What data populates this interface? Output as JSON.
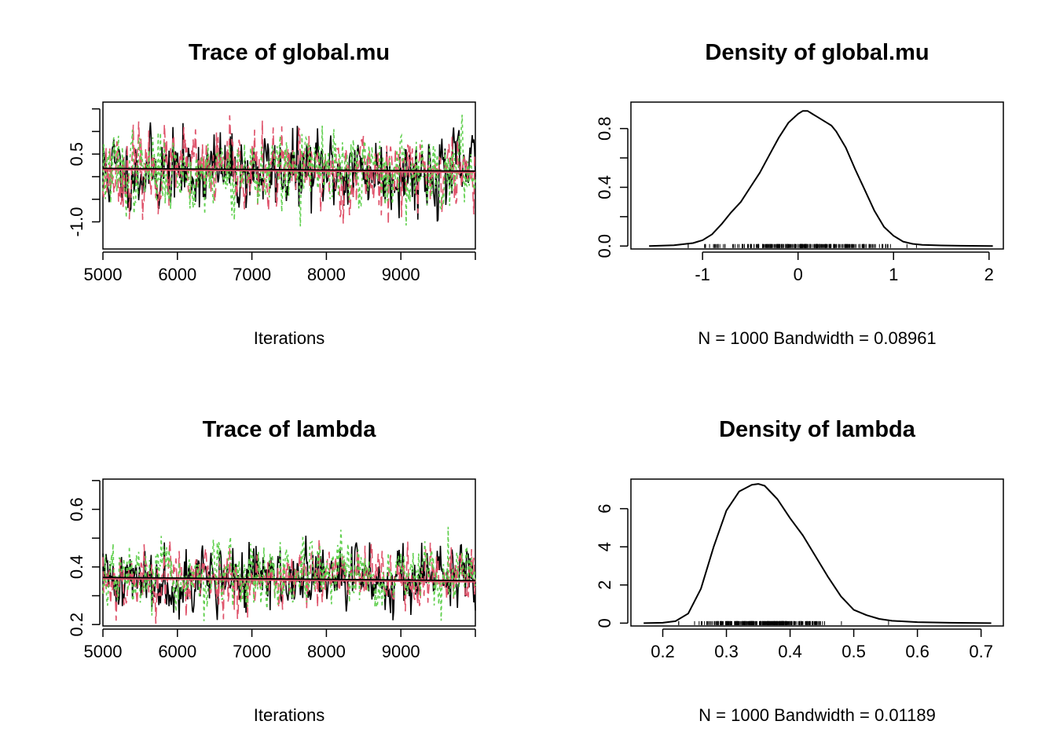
{
  "colors": {
    "chain1": "#000000",
    "chain2": "#DF536B",
    "chain3": "#61D04F",
    "mean_line": "#DF536B"
  },
  "chart_data": [
    {
      "id": "trace-global-mu",
      "type": "line",
      "title": "Trace of global.mu",
      "xlabel": "Iterations",
      "ylabel": "",
      "xlim": [
        5000,
        10000
      ],
      "ylim": [
        -1.6,
        1.65
      ],
      "x_ticks": [
        5000,
        6000,
        7000,
        8000,
        9000
      ],
      "x_tick_labels": [
        "5000",
        "6000",
        "7000",
        "8000",
        "9000"
      ],
      "y_ticks": [
        -1.0,
        -0.5,
        0.0,
        0.5,
        1.0,
        1.5
      ],
      "y_tick_labels": [
        "-1.0",
        "",
        "",
        "0.5",
        "",
        ""
      ],
      "x_tick_marks_end": 10000,
      "series": [
        {
          "chain": 1,
          "color": "#000000",
          "dash": "",
          "center": 0.12,
          "sd": 0.42,
          "seed": 11
        },
        {
          "chain": 2,
          "color": "#DF536B",
          "dash": "12,6",
          "center": 0.12,
          "sd": 0.42,
          "seed": 23
        },
        {
          "chain": 3,
          "color": "#61D04F",
          "dash": "4,4",
          "center": 0.12,
          "sd": 0.42,
          "seed": 37
        }
      ],
      "mean_line": {
        "from": [
          5000,
          0.18
        ],
        "to": [
          10000,
          0.12
        ]
      }
    },
    {
      "id": "density-global-mu",
      "type": "line",
      "title": "Density of global.mu",
      "xlabel": "N = 1000   Bandwidth = 0.08961",
      "ylabel": "",
      "xlim": [
        -1.75,
        2.15
      ],
      "ylim": [
        -0.02,
        0.98
      ],
      "x_ticks": [
        -1,
        0,
        1,
        2
      ],
      "x_tick_labels": [
        "-1",
        "0",
        "1",
        "2"
      ],
      "y_ticks": [
        0.0,
        0.2,
        0.4,
        0.6,
        0.8
      ],
      "y_tick_labels": [
        "0.0",
        "",
        "0.4",
        "",
        "0.8"
      ],
      "x": [
        -1.56,
        -1.3,
        -1.1,
        -1.0,
        -0.9,
        -0.8,
        -0.7,
        -0.6,
        -0.5,
        -0.4,
        -0.3,
        -0.2,
        -0.1,
        0.0,
        0.05,
        0.1,
        0.15,
        0.2,
        0.3,
        0.35,
        0.4,
        0.5,
        0.6,
        0.7,
        0.8,
        0.9,
        1.0,
        1.1,
        1.2,
        1.3,
        1.5,
        1.7,
        2.04
      ],
      "y": [
        0.0,
        0.005,
        0.02,
        0.04,
        0.08,
        0.15,
        0.23,
        0.3,
        0.4,
        0.5,
        0.62,
        0.74,
        0.84,
        0.9,
        0.92,
        0.92,
        0.9,
        0.88,
        0.84,
        0.82,
        0.78,
        0.67,
        0.52,
        0.38,
        0.24,
        0.13,
        0.07,
        0.03,
        0.015,
        0.008,
        0.004,
        0.002,
        0.0
      ],
      "rug": {
        "center": 0.12,
        "spread": 0.48,
        "min": -1.15,
        "max": 1.6,
        "count": 260,
        "seed": 5
      }
    },
    {
      "id": "trace-lambda",
      "type": "line",
      "title": "Trace of lambda",
      "xlabel": "Iterations",
      "ylabel": "",
      "xlim": [
        5000,
        10000
      ],
      "ylim": [
        0.195,
        0.705
      ],
      "x_ticks": [
        5000,
        6000,
        7000,
        8000,
        9000
      ],
      "x_tick_labels": [
        "5000",
        "6000",
        "7000",
        "8000",
        "9000"
      ],
      "y_ticks": [
        0.2,
        0.3,
        0.4,
        0.5,
        0.6,
        0.7
      ],
      "y_tick_labels": [
        "0.2",
        "",
        "0.4",
        "",
        "0.6",
        ""
      ],
      "x_tick_marks_end": 10000,
      "series": [
        {
          "chain": 1,
          "color": "#000000",
          "dash": "",
          "center": 0.36,
          "sd": 0.055,
          "seed": 41
        },
        {
          "chain": 2,
          "color": "#DF536B",
          "dash": "12,6",
          "center": 0.36,
          "sd": 0.055,
          "seed": 53
        },
        {
          "chain": 3,
          "color": "#61D04F",
          "dash": "4,4",
          "center": 0.36,
          "sd": 0.055,
          "seed": 67
        }
      ],
      "mean_line": {
        "from": [
          5000,
          0.363
        ],
        "to": [
          10000,
          0.352
        ]
      }
    },
    {
      "id": "density-lambda",
      "type": "line",
      "title": "Density of lambda",
      "xlabel": "N = 1000   Bandwidth = 0.01189",
      "ylabel": "",
      "xlim": [
        0.15,
        0.735
      ],
      "ylim": [
        -0.15,
        7.55
      ],
      "x_ticks": [
        0.2,
        0.3,
        0.4,
        0.5,
        0.6,
        0.7
      ],
      "x_tick_labels": [
        "0.2",
        "0.3",
        "0.4",
        "0.5",
        "0.6",
        "0.7"
      ],
      "y_ticks": [
        0,
        2,
        4,
        6
      ],
      "y_tick_labels": [
        "0",
        "2",
        "4",
        "6"
      ],
      "x": [
        0.17,
        0.2,
        0.22,
        0.24,
        0.26,
        0.28,
        0.3,
        0.32,
        0.34,
        0.35,
        0.36,
        0.38,
        0.4,
        0.42,
        0.44,
        0.46,
        0.48,
        0.5,
        0.52,
        0.54,
        0.56,
        0.6,
        0.65,
        0.716
      ],
      "y": [
        0.0,
        0.02,
        0.1,
        0.5,
        1.8,
        4.0,
        5.9,
        6.9,
        7.25,
        7.3,
        7.2,
        6.5,
        5.5,
        4.6,
        3.5,
        2.4,
        1.4,
        0.7,
        0.42,
        0.22,
        0.12,
        0.05,
        0.02,
        0.0
      ],
      "rug": {
        "center": 0.355,
        "spread": 0.05,
        "min": 0.225,
        "max": 0.635,
        "count": 300,
        "seed": 9
      }
    }
  ]
}
